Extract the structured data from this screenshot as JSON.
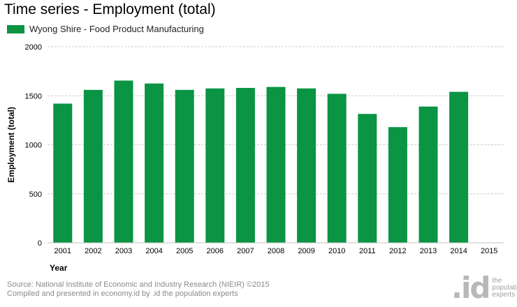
{
  "page": {
    "source_text": "Source: National Institute of Economic and Industry Research (NIEIR) ©2015",
    "compiled_text": "Compiled and presented in economy.id by .id the population experts",
    "brand": {
      "mark": ".id",
      "tagline": [
        "the",
        "population",
        "experts"
      ]
    }
  },
  "chart_data": {
    "type": "bar",
    "title": "Time series - Employment (total)",
    "xlabel": "Year",
    "ylabel": "Employment (total)",
    "ylim": [
      0,
      2000
    ],
    "yticks": [
      0,
      500,
      1000,
      1500,
      2000
    ],
    "grid": true,
    "legend_position": "top-left",
    "categories": [
      "2001",
      "2002",
      "2003",
      "2004",
      "2005",
      "2006",
      "2007",
      "2008",
      "2009",
      "2010",
      "2011",
      "2012",
      "2013",
      "2014",
      "2015"
    ],
    "series": [
      {
        "name": "Wyong Shire - Food Product Manufacturing",
        "color": "#0a9444",
        "values": [
          1420,
          1560,
          1655,
          1625,
          1560,
          1575,
          1580,
          1590,
          1575,
          1520,
          1315,
          1180,
          1390,
          1540,
          null
        ]
      }
    ],
    "colors": {
      "grid": "#cccccc",
      "axis": "#c0c0c0"
    }
  }
}
